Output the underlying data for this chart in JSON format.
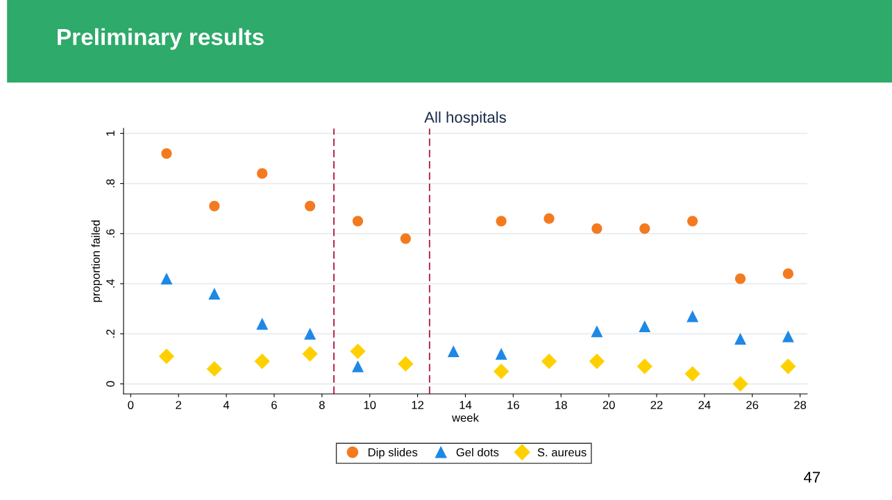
{
  "chart_data": {
    "type": "scatter",
    "title": "Preliminary results",
    "subtitle": "All hospitals",
    "xlabel": "week",
    "ylabel": "proportion failed",
    "x": [
      1.5,
      3.5,
      5.5,
      7.5,
      9.5,
      11.5,
      13.5,
      15.5,
      17.5,
      19.5,
      21.5,
      23.5,
      25.5,
      27.5
    ],
    "series": [
      {
        "name": "Dip slides",
        "color": "#f47a20",
        "marker": "circle",
        "values": [
          0.92,
          0.71,
          0.84,
          0.71,
          0.65,
          0.58,
          null,
          0.65,
          0.66,
          0.62,
          0.62,
          0.65,
          0.42,
          0.44
        ]
      },
      {
        "name": "Gel dots",
        "color": "#1e88e5",
        "marker": "triangle",
        "values": [
          0.42,
          0.36,
          0.24,
          0.2,
          0.07,
          null,
          0.13,
          0.12,
          null,
          0.21,
          0.23,
          0.27,
          0.18,
          0.19
        ]
      },
      {
        "name": "S. aureus",
        "color": "#ffd000",
        "marker": "diamond",
        "values": [
          0.11,
          0.06,
          0.09,
          0.12,
          0.13,
          0.08,
          null,
          0.05,
          0.09,
          0.09,
          0.07,
          0.04,
          0,
          0.07
        ]
      }
    ],
    "xlim": [
      -0.3,
      28.3
    ],
    "ylim": [
      -0.04,
      1.02
    ],
    "xticks": [
      0,
      2,
      4,
      6,
      8,
      10,
      12,
      14,
      16,
      18,
      20,
      22,
      24,
      26,
      28
    ],
    "yticks": [
      0,
      {
        "value": 0.2,
        "label": ".2"
      },
      {
        "value": 0.4,
        "label": ".4"
      },
      {
        "value": 0.6,
        "label": ".6"
      },
      {
        "value": 0.8,
        "label": ".8"
      },
      1
    ],
    "ref_lines": [
      {
        "axis": "x",
        "value": 8.5,
        "label": null,
        "color": "#b0133a",
        "line_style": "dashed"
      },
      {
        "axis": "x",
        "value": 12.5,
        "label": null,
        "color": "#b0133a",
        "line_style": "dashed"
      }
    ],
    "grid": "y",
    "legend": "bottom",
    "annotations": [
      "47"
    ]
  }
}
